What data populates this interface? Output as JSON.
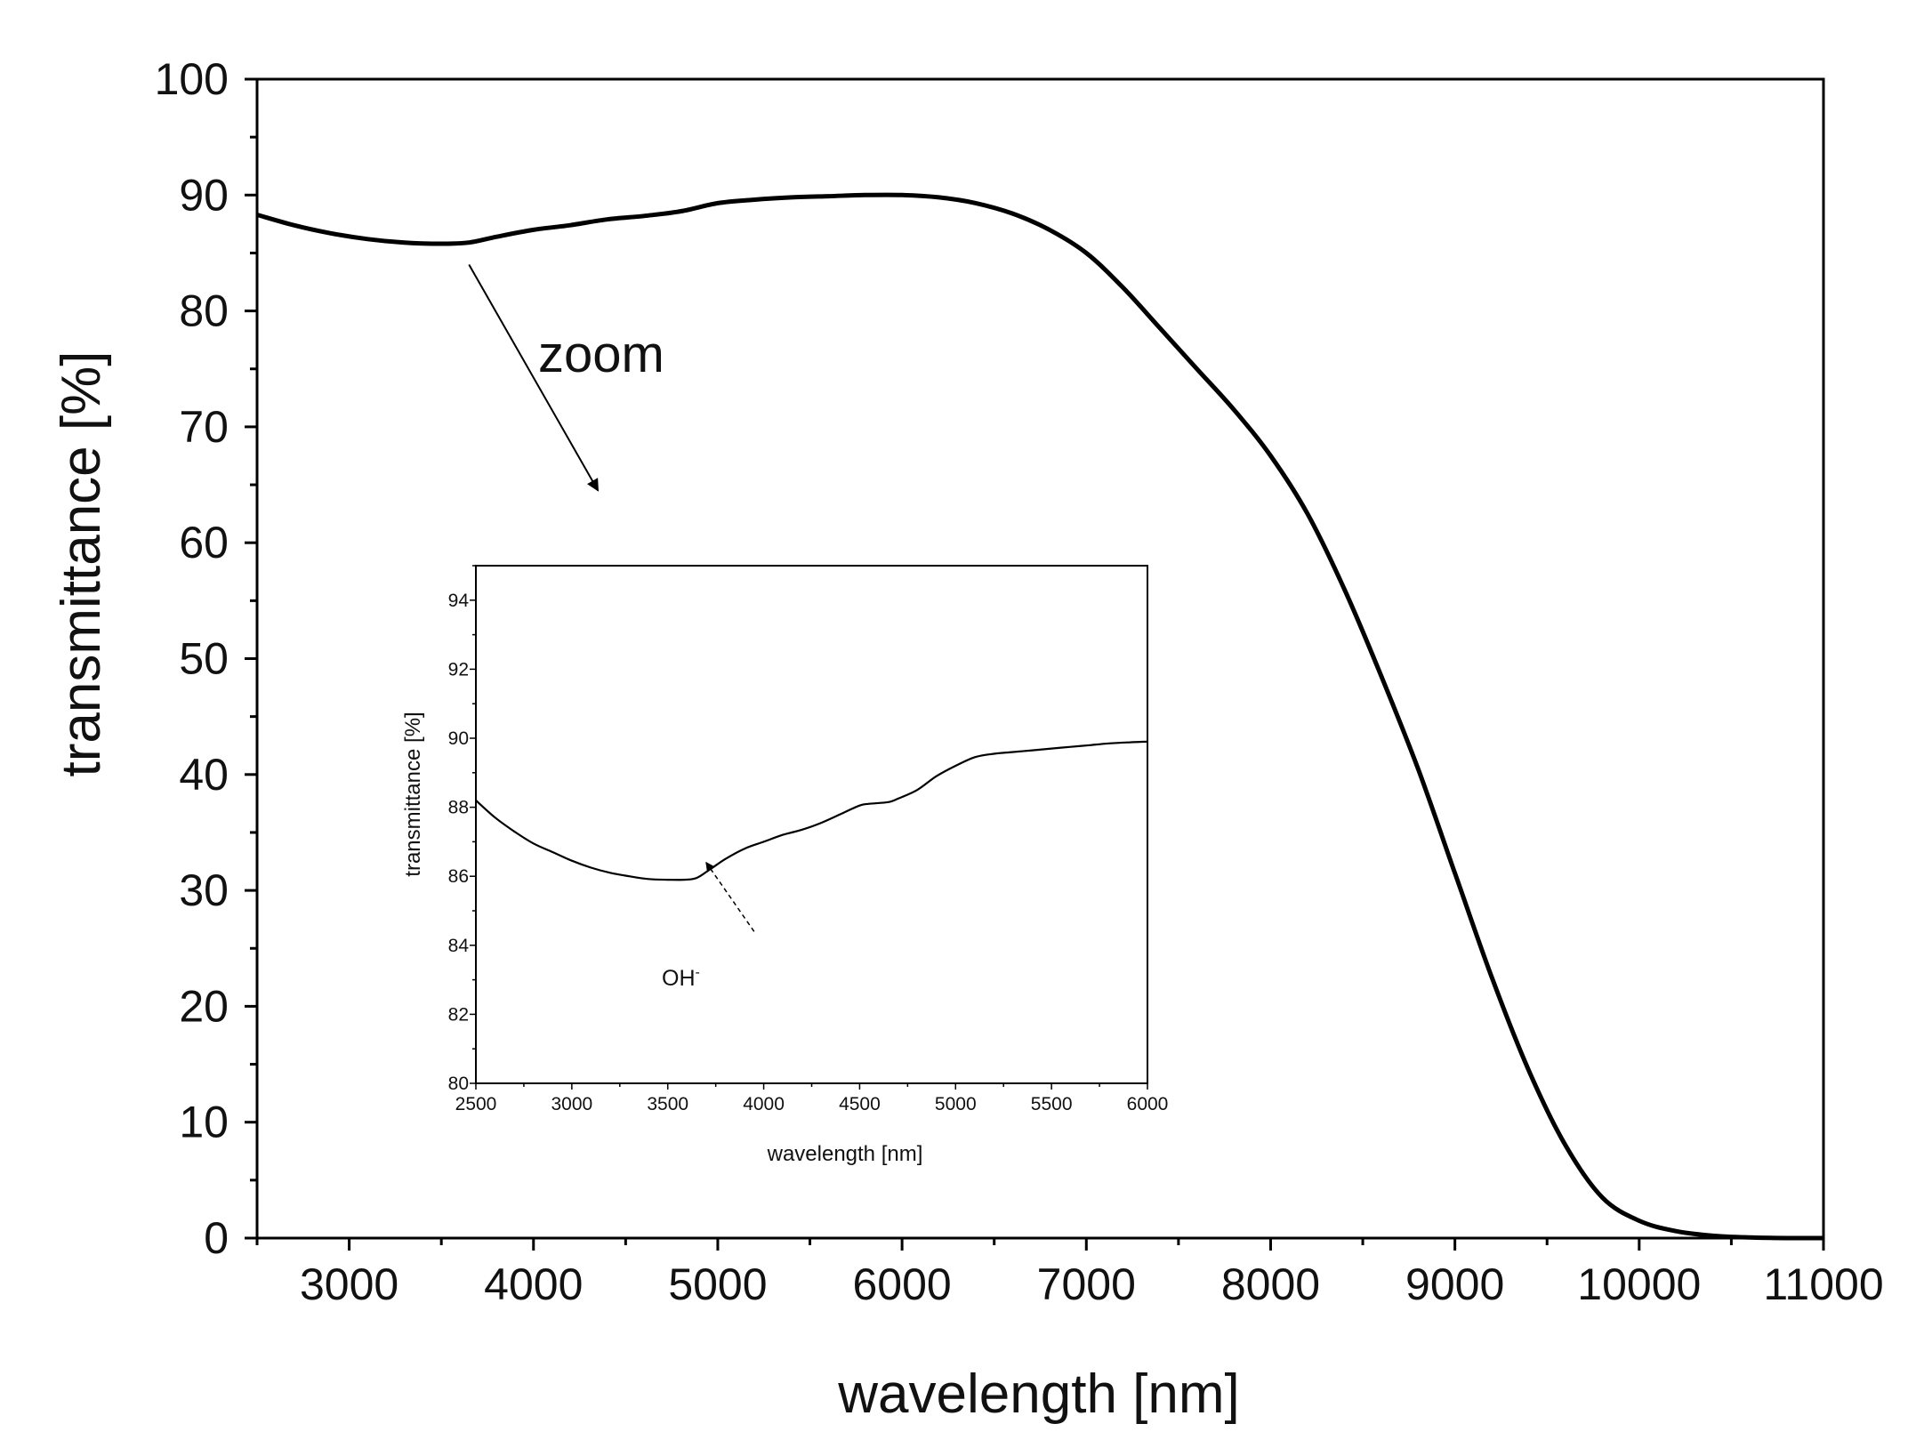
{
  "chart_data": [
    {
      "id": "main",
      "type": "line",
      "title": "",
      "xlabel": "wavelength [nm]",
      "ylabel": "transmittance [%]",
      "xlim": [
        2500,
        11000
      ],
      "ylim": [
        0,
        100
      ],
      "xticks": [
        3000,
        4000,
        5000,
        6000,
        7000,
        8000,
        9000,
        10000,
        11000
      ],
      "yticks": [
        0,
        10,
        20,
        30,
        40,
        50,
        60,
        70,
        80,
        90,
        100
      ],
      "grid": false,
      "series": [
        {
          "name": "transmittance",
          "x": [
            2500,
            2700,
            2900,
            3100,
            3300,
            3500,
            3650,
            3800,
            4000,
            4200,
            4400,
            4600,
            4800,
            5000,
            5200,
            5400,
            5600,
            5800,
            6000,
            6200,
            6400,
            6600,
            6800,
            7000,
            7200,
            7400,
            7600,
            7800,
            8000,
            8200,
            8400,
            8600,
            8800,
            9000,
            9200,
            9400,
            9600,
            9800,
            10000,
            10200,
            10400,
            10600,
            10800,
            11000
          ],
          "y": [
            88.3,
            87.4,
            86.7,
            86.2,
            85.9,
            85.8,
            85.9,
            86.4,
            87.0,
            87.4,
            87.9,
            88.2,
            88.6,
            89.3,
            89.6,
            89.8,
            89.9,
            90.0,
            90.0,
            89.8,
            89.3,
            88.4,
            87.0,
            85.0,
            82.0,
            78.5,
            75.0,
            71.5,
            67.5,
            62.5,
            56.0,
            48.5,
            40.5,
            31.5,
            22.5,
            14.5,
            8.0,
            3.5,
            1.5,
            0.6,
            0.2,
            0.05,
            0.0,
            0.0
          ]
        }
      ],
      "annotations": [
        {
          "text": "zoom",
          "arrow_from": [
            3650,
            84
          ],
          "arrow_to": [
            4350,
            64.5
          ]
        }
      ]
    },
    {
      "id": "inset",
      "type": "line",
      "title": "",
      "xlabel": "wavelength [nm]",
      "ylabel": "transmittance [%]",
      "xlim": [
        2500,
        6000
      ],
      "ylim": [
        80,
        95
      ],
      "xticks": [
        2500,
        3000,
        3500,
        4000,
        4500,
        5000,
        5500,
        6000
      ],
      "yticks": [
        80,
        82,
        84,
        86,
        88,
        90,
        92,
        94
      ],
      "grid": false,
      "series": [
        {
          "name": "transmittance",
          "x": [
            2500,
            2600,
            2700,
            2800,
            2900,
            3000,
            3100,
            3200,
            3300,
            3400,
            3500,
            3580,
            3650,
            3720,
            3800,
            3900,
            4000,
            4100,
            4200,
            4300,
            4400,
            4500,
            4550,
            4650,
            4700,
            4800,
            4900,
            5000,
            5100,
            5200,
            5300,
            5400,
            5500,
            5600,
            5700,
            5800,
            5900,
            6000
          ],
          "y": [
            88.2,
            87.7,
            87.3,
            86.95,
            86.7,
            86.45,
            86.25,
            86.1,
            86.0,
            85.92,
            85.9,
            85.9,
            85.95,
            86.2,
            86.5,
            86.8,
            87.0,
            87.2,
            87.35,
            87.55,
            87.8,
            88.05,
            88.1,
            88.15,
            88.25,
            88.5,
            88.9,
            89.2,
            89.45,
            89.55,
            89.6,
            89.65,
            89.7,
            89.75,
            89.8,
            89.85,
            89.88,
            89.9
          ]
        }
      ],
      "annotations": [
        {
          "text": "OH",
          "superscript": "-",
          "arrow_from": [
            3950,
            84.4
          ],
          "arrow_to": [
            3700,
            86.4
          ]
        }
      ]
    }
  ],
  "colors": {
    "line": "#000000",
    "axis": "#000000",
    "text": "#111111",
    "background": "#ffffff"
  }
}
